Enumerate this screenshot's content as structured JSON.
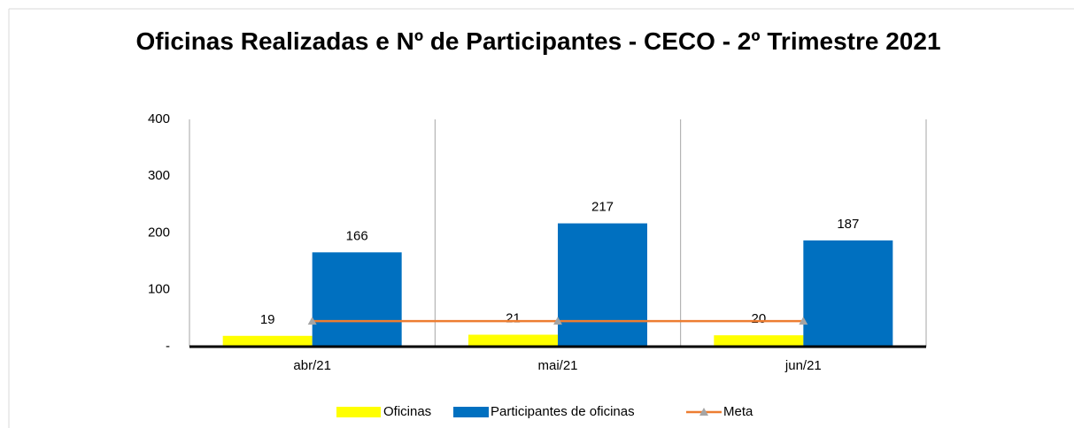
{
  "chart_data": {
    "type": "bar",
    "title": "Oficinas Realizadas e Nº de Participantes - CECO - 2º Trimestre 2021",
    "categories": [
      "abr/21",
      "mai/21",
      "jun/21"
    ],
    "series": [
      {
        "name": "Oficinas",
        "color": "#ffff00",
        "type": "bar",
        "values": [
          19,
          21,
          20
        ]
      },
      {
        "name": "Participantes de oficinas",
        "color": "#0070c0",
        "type": "bar",
        "values": [
          166,
          217,
          187
        ]
      },
      {
        "name": "Meta",
        "color": "#ed7d31",
        "type": "line",
        "marker_color": "#a5a5a5",
        "values": [
          45,
          45,
          45
        ]
      }
    ],
    "ylim": [
      0,
      400
    ],
    "yticks": [
      {
        "value": 0,
        "label": "-"
      },
      100,
      200,
      300,
      400
    ],
    "legend": "bottom"
  }
}
